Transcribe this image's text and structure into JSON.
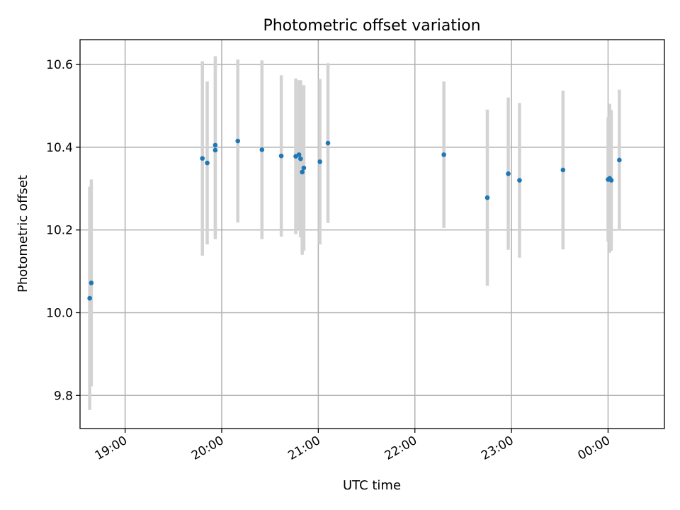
{
  "chart_data": {
    "type": "scatter",
    "title": "Photometric offset variation",
    "xlabel": "UTC time",
    "ylabel": "Photometric offset",
    "x_unit": "UTC time (HH:MM)",
    "xlim": [
      "18:32",
      "00:35"
    ],
    "ylim": [
      9.72,
      10.66
    ],
    "x_ticks": [
      "19:00",
      "20:00",
      "21:00",
      "22:00",
      "23:00",
      "00:00"
    ],
    "y_ticks": [
      "9.8",
      "10.0",
      "10.2",
      "10.4",
      "10.6"
    ],
    "grid": true,
    "colors": {
      "marker": "#1f77b4",
      "errorbar": "#d3d3d3",
      "grid": "#b0b0b0"
    },
    "series": [
      {
        "points": [
          {
            "t": "18:38",
            "y": 10.035,
            "err": 0.27
          },
          {
            "t": "18:39",
            "y": 10.072,
            "err": 0.25
          },
          {
            "t": "19:48",
            "y": 10.373,
            "err": 0.235
          },
          {
            "t": "19:51",
            "y": 10.362,
            "err": 0.197
          },
          {
            "t": "19:56",
            "y": 10.393,
            "err": 0.215
          },
          {
            "t": "19:56",
            "y": 10.405,
            "err": 0.215
          },
          {
            "t": "20:10",
            "y": 10.415,
            "err": 0.197
          },
          {
            "t": "20:25",
            "y": 10.394,
            "err": 0.216
          },
          {
            "t": "20:37",
            "y": 10.379,
            "err": 0.195
          },
          {
            "t": "20:46",
            "y": 10.378,
            "err": 0.188
          },
          {
            "t": "20:48",
            "y": 10.382,
            "err": 0.18
          },
          {
            "t": "20:49",
            "y": 10.372,
            "err": 0.19
          },
          {
            "t": "20:50",
            "y": 10.34,
            "err": 0.2
          },
          {
            "t": "20:51",
            "y": 10.35,
            "err": 0.2
          },
          {
            "t": "21:01",
            "y": 10.365,
            "err": 0.2
          },
          {
            "t": "21:06",
            "y": 10.41,
            "err": 0.193
          },
          {
            "t": "22:18",
            "y": 10.382,
            "err": 0.177
          },
          {
            "t": "22:45",
            "y": 10.278,
            "err": 0.213
          },
          {
            "t": "22:58",
            "y": 10.336,
            "err": 0.184
          },
          {
            "t": "23:05",
            "y": 10.32,
            "err": 0.187
          },
          {
            "t": "23:32",
            "y": 10.345,
            "err": 0.192
          },
          {
            "t": "00:00",
            "y": 10.322,
            "err": 0.15
          },
          {
            "t": "00:01",
            "y": 10.325,
            "err": 0.18
          },
          {
            "t": "00:02",
            "y": 10.32,
            "err": 0.17
          },
          {
            "t": "00:07",
            "y": 10.369,
            "err": 0.17
          }
        ]
      }
    ]
  }
}
